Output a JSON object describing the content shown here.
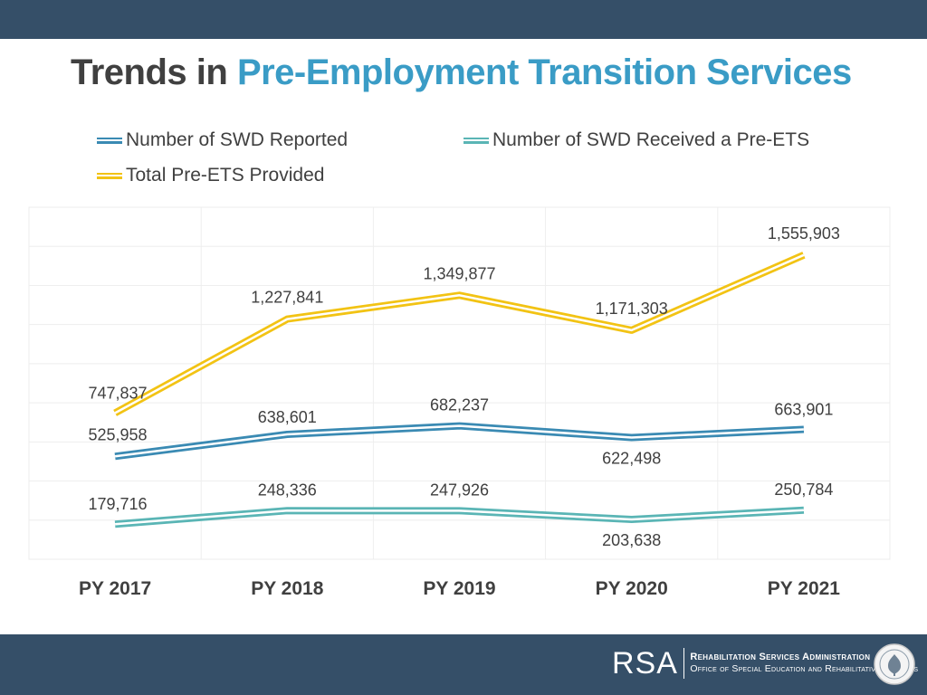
{
  "header": {
    "title_prefix": "Trends in ",
    "title_accent": "Pre-Employment Transition Services"
  },
  "colors": {
    "bar": "#354f68",
    "accent_title": "#3a9cc6",
    "series_reported": "#3a8ab3",
    "series_received": "#5ab5b5",
    "series_total": "#f2c314"
  },
  "chart_data": {
    "type": "line",
    "title": "Trends in Pre-Employment Transition Services",
    "categories": [
      "PY 2017",
      "PY 2018",
      "PY 2019",
      "PY 2020",
      "PY 2021"
    ],
    "xlabel": "",
    "ylabel": "",
    "ylim": [
      0,
      1800000
    ],
    "grid": true,
    "legend_position": "top",
    "series": [
      {
        "name": "Number of SWD Reported",
        "values": [
          525958,
          638601,
          682237,
          622498,
          663901
        ],
        "labels": [
          "525,958",
          "638,601",
          "682,237",
          "622,498",
          "663,901"
        ],
        "color": "#3a8ab3"
      },
      {
        "name": "Number of SWD Received a Pre-ETS",
        "values": [
          179716,
          248336,
          247926,
          203638,
          250784
        ],
        "labels": [
          "179,716",
          "248,336",
          "247,926",
          "203,638",
          "250,784"
        ],
        "color": "#5ab5b5"
      },
      {
        "name": "Total Pre-ETS Provided",
        "values": [
          747837,
          1227841,
          1349877,
          1171303,
          1555903
        ],
        "labels": [
          "747,837",
          "1,227,841",
          "1,349,877",
          "1,171,303",
          "1,555,903"
        ],
        "color": "#f2c314"
      }
    ]
  },
  "footer": {
    "logo_mark": "RSA",
    "org_name": "Rehabilitation Services Administration",
    "org_office": "Office of Special Education and Rehabilitative Services",
    "seal_icon": "department-of-education-seal-icon"
  }
}
